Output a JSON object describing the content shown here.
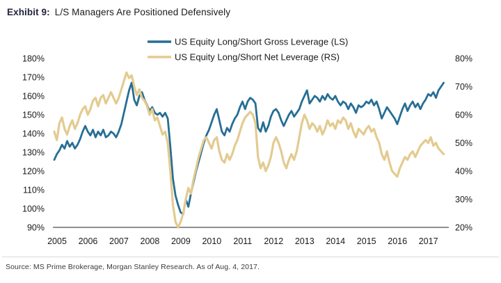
{
  "title": {
    "prefix": "Exhibit 9:",
    "text": "L/S Managers Are Positioned Defensively"
  },
  "source": "Source: MS Prime Brokerage, Morgan Stanley Research. As of Aug. 4, 2017.",
  "colors": {
    "gross_line": "#266e94",
    "net_line": "#e3cb90",
    "axis_line": "#6a6a6a",
    "tick_text": "#1a1a1a",
    "legend_text": "#1a1a1a",
    "title_accent": "#23233f"
  },
  "chart_data": {
    "type": "line",
    "title": "",
    "xlabel": "",
    "ylabel_left": "Gross Leverage (LS)",
    "ylabel_right": "Net Leverage (RS)",
    "grid": false,
    "legend_position": "top-center",
    "x_mode": "monthly_from_start_year",
    "x_start_year": 2005,
    "x_axis": {
      "ticks": [
        "2005",
        "2006",
        "2007",
        "2008",
        "2009",
        "2010",
        "2011",
        "2012",
        "2013",
        "2014",
        "2015",
        "2016",
        "2017"
      ],
      "tick_years": [
        2005,
        2006,
        2007,
        2008,
        2009,
        2010,
        2011,
        2012,
        2013,
        2014,
        2015,
        2016,
        2017
      ],
      "range": [
        2005,
        2017.75
      ]
    },
    "left_axis": {
      "ticks": [
        "180%",
        "170%",
        "160%",
        "150%",
        "140%",
        "130%",
        "120%",
        "110%",
        "100%",
        "90%"
      ],
      "tick_values": [
        180,
        170,
        160,
        150,
        140,
        130,
        120,
        110,
        100,
        90
      ],
      "range": [
        90,
        180
      ]
    },
    "right_axis": {
      "ticks": [
        "80%",
        "70%",
        "60%",
        "50%",
        "40%",
        "30%",
        "20%"
      ],
      "tick_values": [
        80,
        70,
        60,
        50,
        40,
        30,
        20
      ],
      "range": [
        20,
        80
      ]
    },
    "series": [
      {
        "name": "US Equity Long/Short Gross Leverage (LS)",
        "axis": "left",
        "color": "#266e94",
        "stroke_width": 2.8,
        "monthly_values": [
          126,
          129,
          131,
          134,
          132,
          136,
          133,
          135,
          132,
          134,
          137,
          141,
          144,
          141,
          139,
          142,
          138,
          141,
          139,
          142,
          138,
          139,
          141,
          140,
          138,
          141,
          145,
          151,
          157,
          163,
          167,
          158,
          155,
          160,
          162,
          158,
          155,
          152,
          154,
          151,
          150,
          151,
          149,
          151,
          148,
          133,
          116,
          107,
          102,
          98,
          97,
          105,
          101,
          108,
          114,
          120,
          125,
          130,
          135,
          139,
          142,
          146,
          150,
          153,
          147,
          141,
          139,
          143,
          141,
          145,
          148,
          150,
          154,
          157,
          153,
          157,
          159,
          158,
          156,
          143,
          141,
          146,
          141,
          144,
          149,
          152,
          153,
          151,
          147,
          144,
          147,
          150,
          152,
          149,
          151,
          153,
          157,
          160,
          163,
          156,
          158,
          160,
          159,
          157,
          160,
          158,
          161,
          159,
          158,
          160,
          157,
          155,
          157,
          156,
          153,
          156,
          154,
          151,
          155,
          154,
          155,
          157,
          156,
          158,
          155,
          157,
          153,
          148,
          151,
          154,
          152,
          150,
          148,
          145,
          149,
          153,
          156,
          152,
          155,
          157,
          154,
          156,
          153,
          156,
          158,
          161,
          160,
          162,
          159,
          163,
          165,
          167
        ]
      },
      {
        "name": "US Equity Long/Short Net Leverage (RS)",
        "axis": "right",
        "color": "#e3cb90",
        "stroke_width": 3.2,
        "monthly_values": [
          54,
          51,
          57,
          59,
          55,
          53,
          56,
          58,
          55,
          57,
          60,
          62,
          63,
          60,
          62,
          65,
          66,
          63,
          66,
          67,
          64,
          66,
          68,
          66,
          64,
          66,
          69,
          72,
          75,
          73,
          74,
          70,
          67,
          69,
          66,
          65,
          63,
          60,
          62,
          58,
          59,
          56,
          53,
          54,
          50,
          40,
          28,
          22,
          20,
          22,
          25,
          30,
          34,
          32,
          37,
          41,
          45,
          48,
          51,
          52,
          50,
          48,
          51,
          52,
          47,
          44,
          43,
          46,
          44,
          46,
          49,
          51,
          54,
          57,
          59,
          60,
          61,
          60,
          57,
          45,
          41,
          43,
          40,
          42,
          45,
          50,
          52,
          50,
          47,
          43,
          41,
          44,
          46,
          44,
          47,
          52,
          57,
          60,
          58,
          55,
          57,
          56,
          54,
          56,
          53,
          55,
          58,
          56,
          57,
          55,
          58,
          57,
          59,
          58,
          55,
          57,
          54,
          52,
          55,
          54,
          53,
          55,
          56,
          54,
          55,
          52,
          50,
          46,
          44,
          47,
          43,
          40,
          39,
          38,
          41,
          43,
          45,
          44,
          46,
          47,
          45,
          47,
          49,
          50,
          51,
          50,
          52,
          49,
          50,
          48,
          47,
          46
        ]
      }
    ]
  }
}
